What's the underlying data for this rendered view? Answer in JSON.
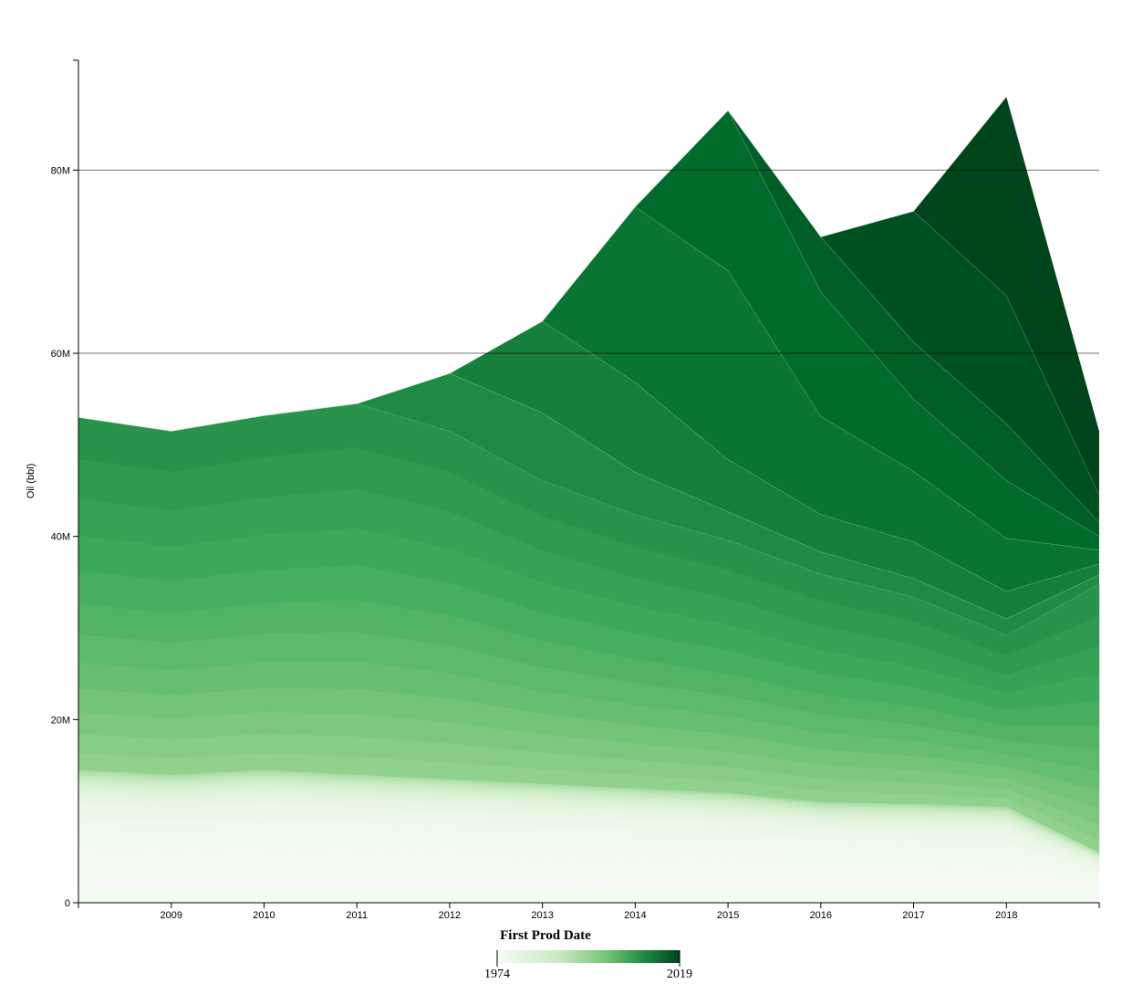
{
  "chart_data": {
    "type": "area",
    "stacked": true,
    "x": [
      "2008",
      "2009",
      "2010",
      "2011",
      "2012",
      "2013",
      "2014",
      "2015",
      "2016",
      "2017",
      "2018",
      "2019"
    ],
    "x_tick_labels": [
      "2009",
      "2010",
      "2011",
      "2012",
      "2013",
      "2014",
      "2015",
      "2016",
      "2017",
      "2018"
    ],
    "y_tick_labels": [
      "0",
      "20M",
      "40M",
      "60M",
      "80M"
    ],
    "y_ticks": [
      0,
      20000000,
      40000000,
      60000000,
      80000000
    ],
    "ylim": [
      0,
      92000000
    ],
    "xlabel": "First Prod Date",
    "ylabel": "Oil (bbl)",
    "grid": "horizontal at 60M and 80M",
    "legend": {
      "type": "color-ramp",
      "placement": "bottom-center",
      "min_label": "1974",
      "max_label": "2019",
      "color_low": "#f7fcf5",
      "color_high": "#00441b"
    },
    "series_by_first_prod_year": {
      "pre_2000_baseline": [
        14500000,
        14000000,
        14500000,
        14000000,
        13500000,
        13000000,
        12500000,
        12000000,
        11000000,
        10800000,
        10500000,
        5500000
      ],
      "totals": [
        53000000,
        51500000,
        53200000,
        54500000,
        57800000,
        63500000,
        76000000,
        86500000,
        72700000,
        75500000,
        88000000,
        51500000
      ],
      "2018": [
        null,
        null,
        null,
        null,
        null,
        null,
        null,
        null,
        null,
        null,
        21700000,
        7000000
      ],
      "2017": [
        null,
        null,
        null,
        null,
        null,
        null,
        null,
        null,
        null,
        14300000,
        14000000,
        3000000
      ],
      "2016": [
        null,
        null,
        null,
        null,
        null,
        null,
        null,
        null,
        6000000,
        6200000,
        6200000,
        1500000
      ],
      "2015": [
        null,
        null,
        null,
        null,
        null,
        null,
        null,
        17500000,
        13600000,
        7900000,
        6300000,
        1500000
      ],
      "2014": [
        null,
        null,
        null,
        null,
        null,
        null,
        19200000,
        20600000,
        10700000,
        7700000,
        5800000,
        1500000
      ],
      "2013": [
        null,
        null,
        null,
        null,
        null,
        10000000,
        9800000,
        5700000,
        4100000,
        4000000,
        3000000,
        1200000
      ],
      "2012": [
        null,
        null,
        null,
        null,
        6300000,
        7400000,
        4600000,
        3100000,
        2400000,
        2000000,
        1800000,
        1000000
      ]
    }
  }
}
